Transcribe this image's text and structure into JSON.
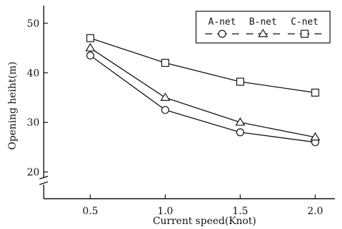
{
  "chart_data": {
    "type": "line",
    "title": "",
    "xlabel": "Current speed(Knot)",
    "ylabel": "Opening heiht(m)",
    "x": [
      0.5,
      1.0,
      1.5,
      2.0
    ],
    "x_tick_labels": [
      "0.5",
      "1.0",
      "1.5",
      "2.0"
    ],
    "xlim": [
      0.0,
      2.2
    ],
    "ylim": [
      20,
      52
    ],
    "y_ticks": [
      20,
      30,
      40,
      50
    ],
    "y_tick_labels": [
      "20",
      "30",
      "40",
      "50"
    ],
    "y_axis_break": true,
    "grid": false,
    "legend_position": "top-right",
    "series": [
      {
        "name": "A-net",
        "marker": "circle",
        "values": [
          43.5,
          32.5,
          28.0,
          26.0
        ]
      },
      {
        "name": "B-net",
        "marker": "triangle",
        "values": [
          45.0,
          35.0,
          30.0,
          27.0
        ]
      },
      {
        "name": "C-net",
        "marker": "square",
        "values": [
          47.0,
          42.0,
          38.2,
          36.0
        ]
      }
    ]
  }
}
